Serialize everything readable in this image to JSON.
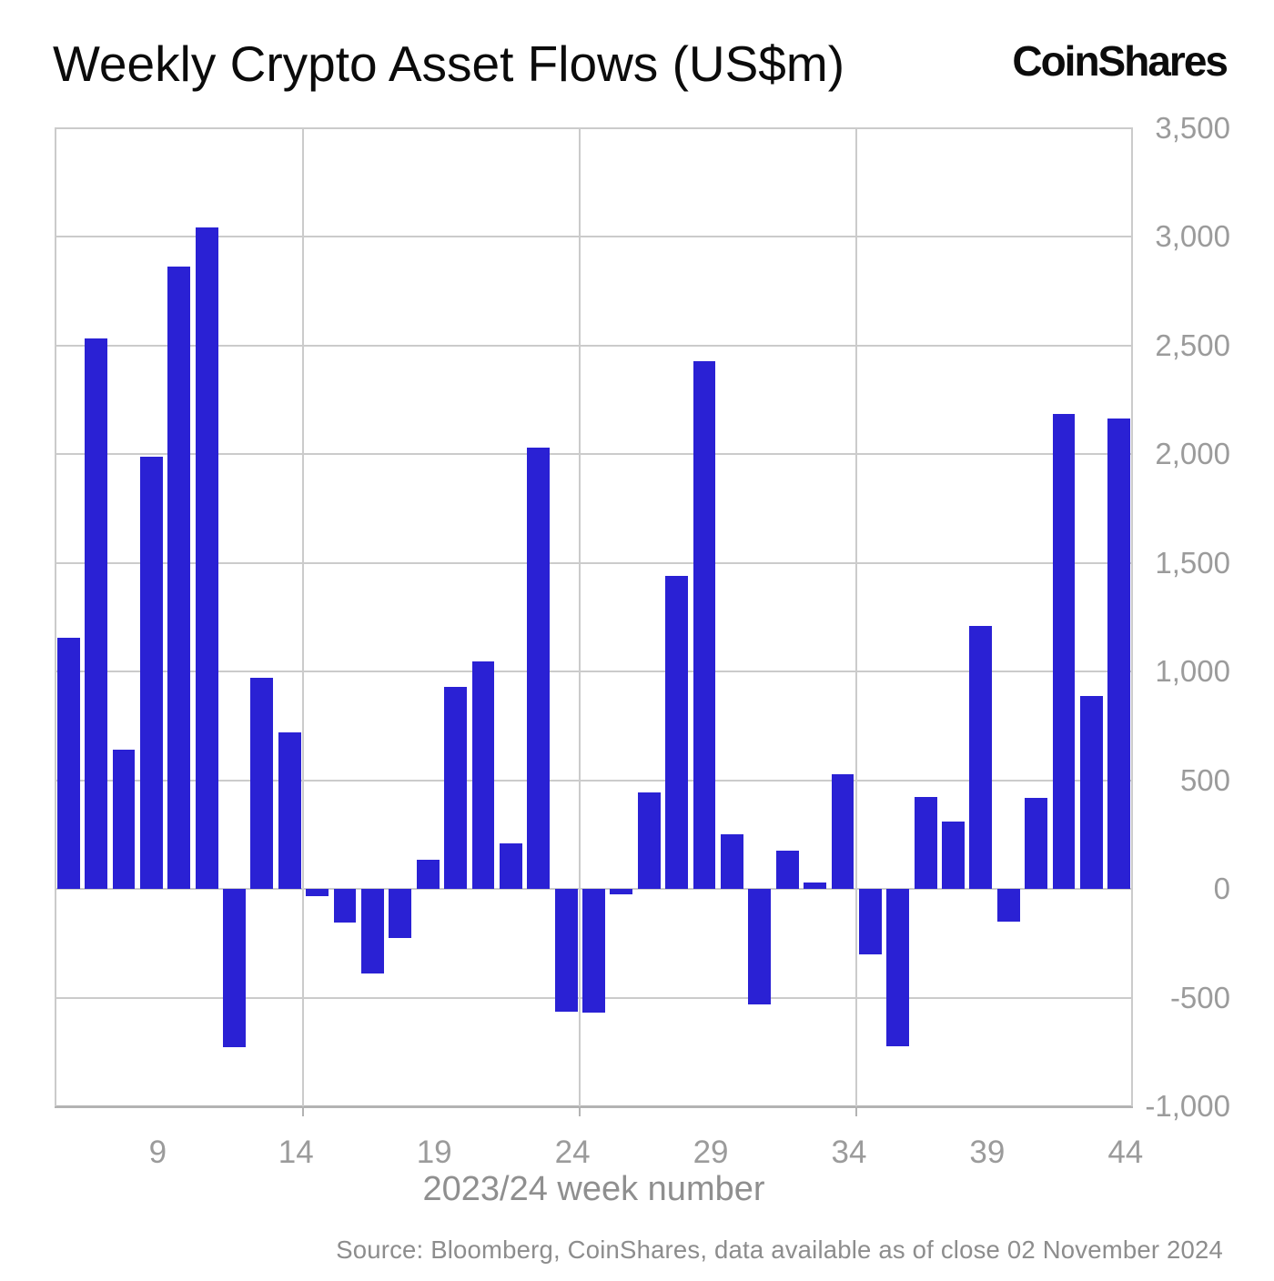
{
  "header": {
    "title": "Weekly Crypto Asset Flows (US$m)",
    "logo_text": "CoinShares"
  },
  "footer": {
    "source_note": "Source: Bloomberg, CoinShares, data available as of close 02 November 2024"
  },
  "chart_data": {
    "type": "bar",
    "xlabel": "2023/24 week number",
    "ylabel": "",
    "weeks": [
      6,
      7,
      8,
      9,
      10,
      11,
      12,
      13,
      14,
      15,
      16,
      17,
      18,
      19,
      20,
      21,
      22,
      23,
      24,
      25,
      26,
      27,
      28,
      29,
      30,
      31,
      32,
      33,
      34,
      35,
      36,
      37,
      38,
      39,
      40,
      41,
      42,
      43,
      44
    ],
    "values": [
      1155,
      2535,
      640,
      1990,
      2865,
      3045,
      -730,
      970,
      720,
      -35,
      -155,
      -390,
      -225,
      135,
      930,
      1045,
      210,
      2030,
      -565,
      -570,
      -25,
      445,
      1440,
      2430,
      250,
      -530,
      175,
      30,
      530,
      -300,
      -725,
      425,
      310,
      1210,
      -150,
      420,
      2185,
      890,
      2165
    ],
    "x_tick_labels": [
      "9",
      "14",
      "19",
      "24",
      "29",
      "34",
      "39",
      "44"
    ],
    "x_tick_weeks": [
      9,
      14,
      19,
      24,
      29,
      34,
      39,
      44
    ],
    "y_tick_labels": [
      "3,500",
      "3,000",
      "2,500",
      "2,000",
      "1,500",
      "1,000",
      "500",
      "0",
      "-500",
      "-1,000"
    ],
    "y_tick_values": [
      3500,
      3000,
      2500,
      2000,
      1500,
      1000,
      500,
      0,
      -500,
      -1000
    ],
    "ylim": [
      -1000,
      3500
    ],
    "vertical_gridline_after_weeks": [
      14,
      24,
      34
    ],
    "grid_on": true,
    "legend": "none",
    "colors": {
      "bar": "#2a21d4",
      "grid": "#cbcbcb",
      "axis": "#b3b3b3",
      "tick_label": "#9b9b9b",
      "axis_title": "#8f8f8f",
      "title": "#0b0b0b",
      "source": "#8d8d8d"
    }
  }
}
